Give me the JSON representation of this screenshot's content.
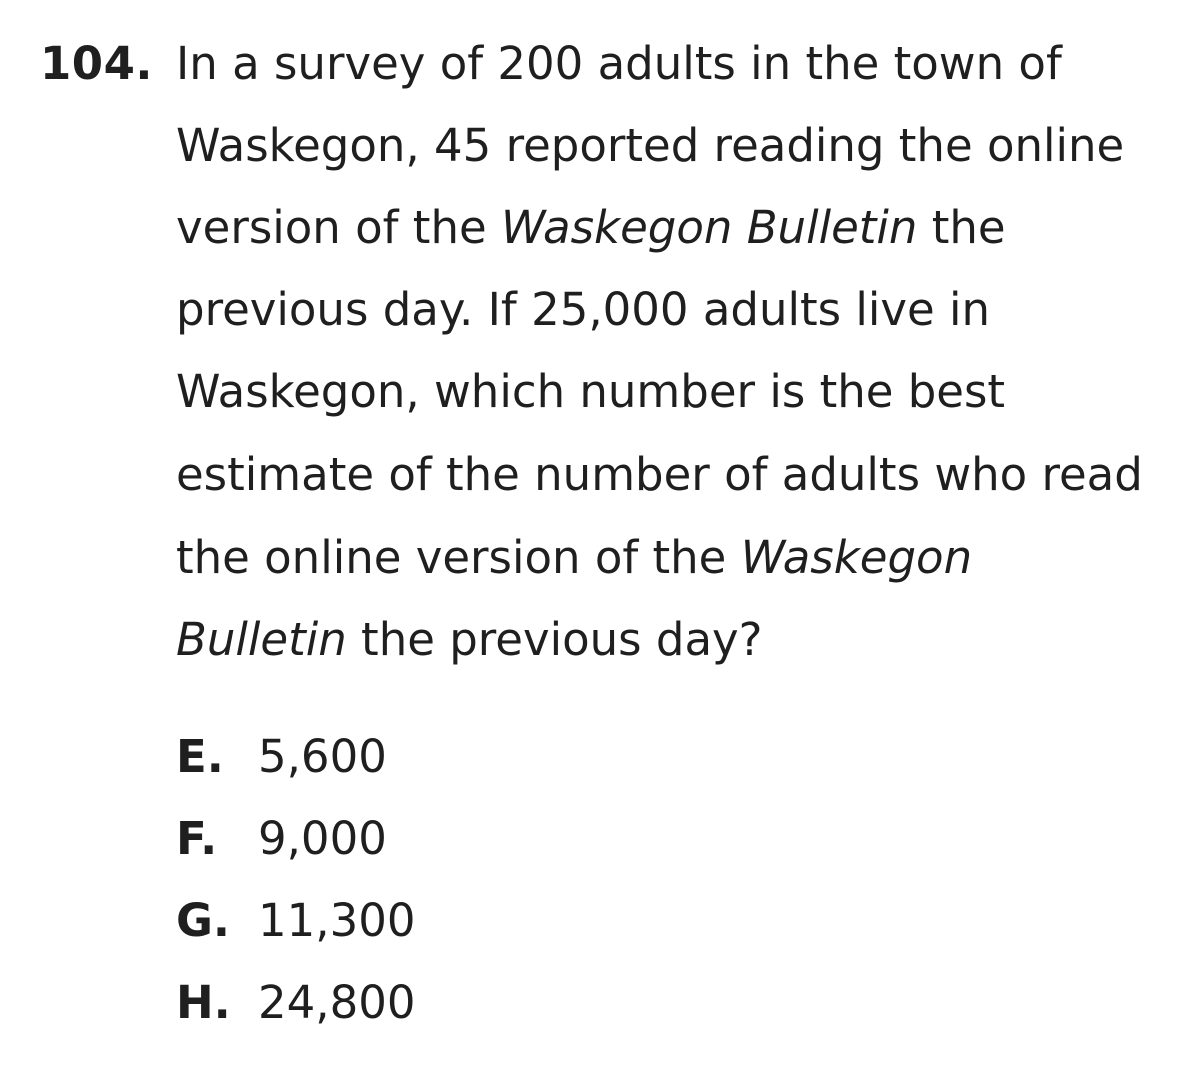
{
  "question": {
    "number": "104.",
    "lines": [
      {
        "parts": [
          "In a survey of 200 adults in the town of"
        ]
      },
      {
        "parts": [
          "Waskegon, 45 reported reading the online"
        ]
      },
      {
        "parts": [
          "version of the ",
          "Waskegon Bulletin",
          " the"
        ]
      },
      {
        "parts": [
          "previous day. If 25,000 adults live in"
        ]
      },
      {
        "parts": [
          "Waskegon, which number is the best"
        ]
      },
      {
        "parts": [
          "estimate of the number of adults who read"
        ]
      },
      {
        "parts": [
          "the online version of the ",
          "Waskegon"
        ]
      },
      {
        "parts": [
          "Bulletin",
          " the previous day?"
        ]
      }
    ]
  },
  "choices": [
    {
      "letter": "E.",
      "value": "5,600"
    },
    {
      "letter": "F.",
      "value": "9,000"
    },
    {
      "letter": "G.",
      "value": "11,300"
    },
    {
      "letter": "H.",
      "value": "24,800"
    }
  ]
}
